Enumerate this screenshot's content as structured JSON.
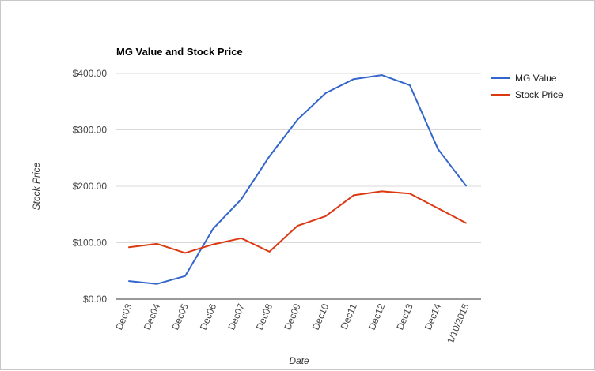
{
  "chart_data": {
    "type": "line",
    "title": "MG Value and Stock Price",
    "xlabel": "Date",
    "ylabel": "Stock Price",
    "categories": [
      "Dec03",
      "Dec04",
      "Dec05",
      "Dec06",
      "Dec07",
      "Dec08",
      "Dec09",
      "Dec10",
      "Dec11",
      "Dec12",
      "Dec13",
      "Dec14",
      "1/10/2015"
    ],
    "series": [
      {
        "name": "MG Value",
        "color": "#3366cc",
        "values": [
          32,
          27,
          41,
          125,
          177,
          253,
          318,
          365,
          390,
          397,
          379,
          266,
          201
        ]
      },
      {
        "name": "Stock Price",
        "color": "#dc3912",
        "values": [
          92,
          98,
          82,
          97,
          108,
          84,
          130,
          147,
          184,
          191,
          187,
          161,
          135
        ]
      }
    ],
    "ylim": [
      0,
      400
    ],
    "yticks": [
      0,
      100,
      200,
      300,
      400
    ],
    "ytick_labels": [
      "$0.00",
      "$100.00",
      "$200.00",
      "$300.00",
      "$400.00"
    ],
    "grid": true,
    "legend_position": "right"
  }
}
